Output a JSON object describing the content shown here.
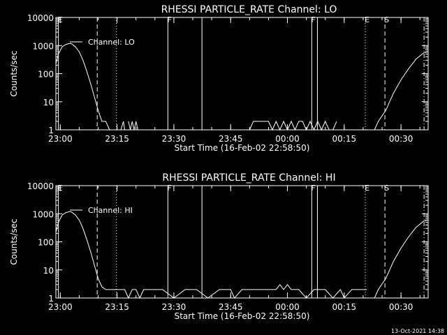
{
  "colors": {
    "background": "#000000",
    "foreground": "#ffffff"
  },
  "footer": {
    "timestamp": "13-Oct-2021 14:38"
  },
  "chart_data": [
    {
      "type": "line",
      "title": "RHESSI PARTICLE_RATE Channel: LO",
      "xlabel": "Start Time (16-Feb-02 22:58:50)",
      "ylabel": "Counts/sec",
      "y_scale": "log",
      "ylim": [
        1,
        10000
      ],
      "xlim": [
        "22:58:50",
        "00:37:10"
      ],
      "x_ticks": [
        "23:00",
        "23:15",
        "23:30",
        "23:45",
        "00:00",
        "00:15",
        "00:30"
      ],
      "y_ticks": [
        "1",
        "10",
        "100",
        "1000",
        "10000"
      ],
      "legend": "Channel: LO",
      "grid": false,
      "series": [
        {
          "name": "Channel: LO",
          "x": [
            "22:58:50",
            "22:59:30",
            "23:00:30",
            "23:01:30",
            "23:02:30",
            "23:03:00",
            "23:04:00",
            "23:05:00",
            "23:06:00",
            "23:07:00",
            "23:08:00",
            "23:09:00",
            "23:10:00",
            "23:11:00",
            "23:12:00",
            "23:13:00",
            "23:14:00",
            "23:15:00",
            "23:16:00",
            "23:16:40",
            "23:17:00",
            "23:17:30",
            "23:18:00",
            "23:18:30",
            "23:19:00",
            "23:19:30",
            "23:20:00",
            "23:20:30",
            "23:21:00",
            "23:21:30",
            "23:22:00",
            "23:50:00",
            "23:51:00",
            "23:53:00",
            "23:54:00",
            "23:55:00",
            "23:56:00",
            "23:57:00",
            "23:58:00",
            "23:59:00",
            "00:00:00",
            "00:01:00",
            "00:02:00",
            "00:03:00",
            "00:04:00",
            "00:05:00",
            "00:06:00",
            "00:07:00",
            "00:08:00",
            "00:09:00",
            "00:10:00",
            "00:11:00",
            "00:12:00",
            "00:13:00",
            "00:21:00",
            "00:22:00",
            "00:23:00",
            "00:24:00",
            "00:26:00",
            "00:28:00",
            "00:30:00",
            "00:32:00",
            "00:34:00",
            "00:36:00",
            "00:37:10"
          ],
          "values": [
            220,
            500,
            900,
            1100,
            1200,
            1150,
            900,
            600,
            300,
            120,
            45,
            15,
            5,
            2,
            2,
            1,
            1,
            null,
            1,
            2,
            1,
            null,
            2,
            1,
            2,
            1,
            2,
            1,
            null,
            null,
            null,
            1,
            2,
            2,
            2,
            2,
            1,
            2,
            1,
            2,
            1,
            2,
            1,
            2,
            2,
            1,
            2,
            1,
            2,
            1,
            2,
            1,
            1,
            2,
            null,
            null,
            1,
            2,
            5,
            20,
            60,
            150,
            330,
            550,
            600
          ]
        }
      ],
      "markers": [
        {
          "label": "E",
          "time": "22:59:30",
          "style": "solid"
        },
        {
          "label": "",
          "time": "23:09:45",
          "style": "dashed"
        },
        {
          "label": "",
          "time": "23:14:50",
          "style": "dotted"
        },
        {
          "label": "F",
          "time": "23:28:25",
          "style": "solid"
        },
        {
          "label": "",
          "time": "23:37:25",
          "style": "solid"
        },
        {
          "label": "F",
          "time": "00:06:25",
          "style": "solid"
        },
        {
          "label": "",
          "time": "00:07:55",
          "style": "solid"
        },
        {
          "label": "E",
          "time": "00:20:35",
          "style": "dotted"
        },
        {
          "label": "S",
          "time": "00:25:45",
          "style": "dashed"
        },
        {
          "label": "",
          "time": "00:36:05",
          "style": "dashdot"
        }
      ]
    },
    {
      "type": "line",
      "title": "RHESSI PARTICLE_RATE Channel: HI",
      "xlabel": "Start Time (16-Feb-02 22:58:50)",
      "ylabel": "Counts/sec",
      "y_scale": "log",
      "ylim": [
        1,
        10000
      ],
      "xlim": [
        "22:58:50",
        "00:37:10"
      ],
      "x_ticks": [
        "23:00",
        "23:15",
        "23:30",
        "23:45",
        "00:00",
        "00:15",
        "00:30"
      ],
      "y_ticks": [
        "1",
        "10",
        "100",
        "1000",
        "10000"
      ],
      "legend": "Channel: HI",
      "grid": false,
      "series": [
        {
          "name": "Channel: HI",
          "x": [
            "22:58:50",
            "22:59:30",
            "23:00:30",
            "23:01:30",
            "23:02:30",
            "23:03:00",
            "23:04:00",
            "23:05:00",
            "23:06:00",
            "23:07:00",
            "23:08:00",
            "23:09:00",
            "23:10:00",
            "23:11:00",
            "23:12:00",
            "23:14:00",
            "23:16:00",
            "23:17:00",
            "23:18:00",
            "23:19:00",
            "23:20:00",
            "23:21:00",
            "23:22:00",
            "23:24:00",
            "23:27:00",
            "23:30:00",
            "23:33:00",
            "23:36:00",
            "23:39:00",
            "23:42:00",
            "23:45:00",
            "23:46:00",
            "23:48:00",
            "23:51:00",
            "23:54:00",
            "23:57:00",
            "23:58:00",
            "23:59:00",
            "00:00:00",
            "00:01:00",
            "00:03:00",
            "00:05:00",
            "00:07:00",
            "00:08:00",
            "00:10:00",
            "00:12:00",
            "00:14:00",
            "00:15:00",
            "00:17:00",
            "00:20:00",
            "00:21:00",
            "00:22:00",
            "00:23:00",
            "00:24:00",
            "00:26:00",
            "00:28:00",
            "00:30:00",
            "00:32:00",
            "00:34:00",
            "00:36:00",
            "00:37:10"
          ],
          "values": [
            220,
            500,
            900,
            1100,
            1200,
            1150,
            900,
            600,
            300,
            120,
            45,
            15,
            5,
            2.5,
            2,
            2,
            2,
            2,
            1,
            2,
            2,
            1,
            2,
            2,
            2,
            1,
            2,
            2,
            1,
            2,
            2,
            1,
            2,
            2,
            2,
            2,
            3,
            2,
            3,
            2,
            2,
            1,
            2,
            2,
            2,
            1,
            2,
            1,
            2,
            2,
            2,
            null,
            1,
            2,
            5,
            20,
            60,
            150,
            330,
            550,
            600
          ]
        }
      ],
      "markers": [
        {
          "label": "E",
          "time": "22:59:30",
          "style": "solid"
        },
        {
          "label": "",
          "time": "23:09:45",
          "style": "dashed"
        },
        {
          "label": "",
          "time": "23:14:50",
          "style": "dotted"
        },
        {
          "label": "F",
          "time": "23:28:25",
          "style": "solid"
        },
        {
          "label": "",
          "time": "23:37:25",
          "style": "solid"
        },
        {
          "label": "F",
          "time": "00:06:25",
          "style": "solid"
        },
        {
          "label": "",
          "time": "00:07:55",
          "style": "solid"
        },
        {
          "label": "E",
          "time": "00:20:35",
          "style": "dotted"
        },
        {
          "label": "S",
          "time": "00:25:45",
          "style": "dashed"
        },
        {
          "label": "",
          "time": "00:36:05",
          "style": "dashdot"
        }
      ]
    }
  ]
}
